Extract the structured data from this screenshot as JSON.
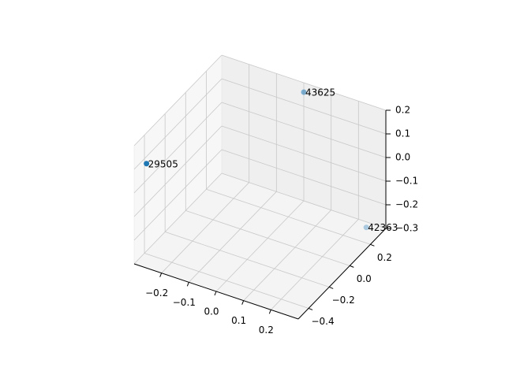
{
  "chart_data": {
    "type": "scatter",
    "projection": "3d",
    "title": "",
    "xlabel": "",
    "ylabel": "",
    "zlabel": "",
    "xlim": [
      -0.3,
      0.3
    ],
    "ylim": [
      -0.5,
      0.35
    ],
    "zlim": [
      -0.3,
      0.2
    ],
    "xticks": [
      -0.2,
      -0.1,
      0.0,
      0.1,
      0.2
    ],
    "yticks": [
      -0.4,
      -0.2,
      0.0,
      0.2
    ],
    "zticks": [
      -0.3,
      -0.2,
      -0.1,
      0.0,
      0.1,
      0.2
    ],
    "xtick_labels": [
      "−0.2",
      "−0.1",
      "0.0",
      "0.1",
      "0.2"
    ],
    "ytick_labels": [
      "−0.4",
      "−0.2",
      "0.0",
      "0.2"
    ],
    "ztick_labels": [
      "−0.3",
      "−0.2",
      "−0.1",
      "0.0",
      "0.1",
      "0.2"
    ],
    "grid": true,
    "color": "#1f77b4",
    "points": [
      {
        "label": "29505",
        "x": -0.3,
        "y": -0.38,
        "z": 0.07
      },
      {
        "label": "43625",
        "x": 0.0,
        "y": 0.35,
        "z": 0.16
      },
      {
        "label": "42363",
        "x": 0.3,
        "y": 0.16,
        "z": -0.21
      }
    ]
  }
}
